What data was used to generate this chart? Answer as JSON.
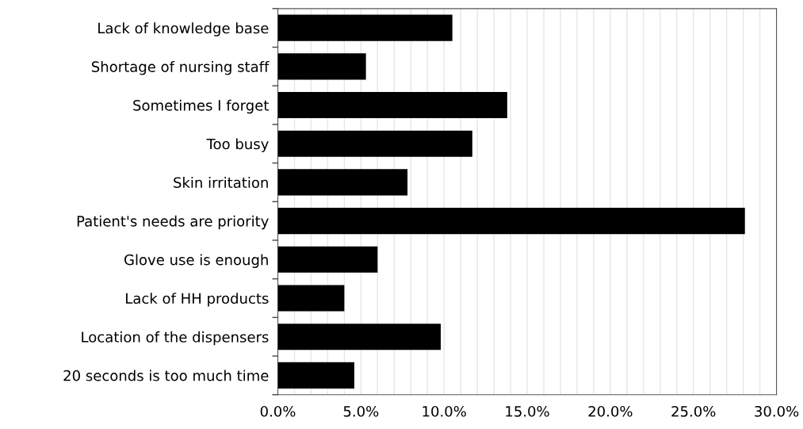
{
  "chart_data": {
    "type": "bar",
    "orientation": "horizontal",
    "categories": [
      "Lack of knowledge base",
      "Shortage of nursing staff",
      "Sometimes I forget",
      "Too busy",
      "Skin irritation",
      "Patient's needs are priority",
      "Glove use is enough",
      "Lack of HH products",
      "Location of the dispensers",
      "20 seconds is too much time"
    ],
    "values": [
      10.5,
      5.3,
      13.8,
      11.7,
      7.8,
      28.1,
      6.0,
      4.0,
      9.8,
      4.6
    ],
    "color": "#000000",
    "xlim": [
      0,
      30
    ],
    "xticks": [
      {
        "value": 0,
        "label": "0.0%"
      },
      {
        "value": 1,
        "label": null
      },
      {
        "value": 2,
        "label": null
      },
      {
        "value": 3,
        "label": null
      },
      {
        "value": 4,
        "label": null
      },
      {
        "value": 5,
        "label": "5.0%"
      },
      {
        "value": 6,
        "label": null
      },
      {
        "value": 7,
        "label": null
      },
      {
        "value": 8,
        "label": null
      },
      {
        "value": 9,
        "label": null
      },
      {
        "value": 10,
        "label": "10.0%"
      },
      {
        "value": 11,
        "label": null
      },
      {
        "value": 12,
        "label": null
      },
      {
        "value": 13,
        "label": null
      },
      {
        "value": 14,
        "label": null
      },
      {
        "value": 15,
        "label": "15.0%"
      },
      {
        "value": 16,
        "label": null
      },
      {
        "value": 17,
        "label": null
      },
      {
        "value": 18,
        "label": null
      },
      {
        "value": 19,
        "label": null
      },
      {
        "value": 20,
        "label": "20.0%"
      },
      {
        "value": 21,
        "label": null
      },
      {
        "value": 22,
        "label": null
      },
      {
        "value": 23,
        "label": null
      },
      {
        "value": 24,
        "label": null
      },
      {
        "value": 25,
        "label": "25.0%"
      },
      {
        "value": 26,
        "label": null
      },
      {
        "value": 27,
        "label": null
      },
      {
        "value": 28,
        "label": null
      },
      {
        "value": 29,
        "label": null
      },
      {
        "value": 30,
        "label": "30.0%"
      }
    ],
    "grid": "x"
  }
}
